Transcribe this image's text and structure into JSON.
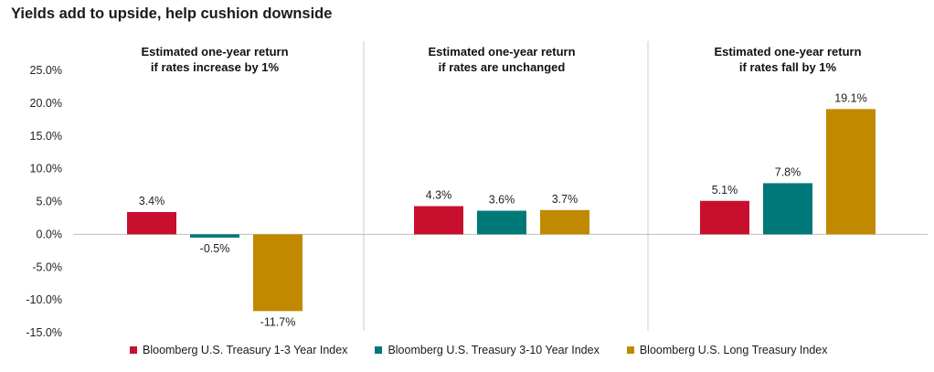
{
  "title": "Yields add to upside, help cushion downside",
  "colors": {
    "series1": "#c8102e",
    "series2": "#00787a",
    "series3": "#c08900",
    "divider": "#cccccc",
    "axis_line": "#bfbfbf"
  },
  "chart_data": {
    "type": "bar",
    "title": "Yields add to upside, help cushion downside",
    "ylim": [
      -15,
      25
    ],
    "yticks": [
      "25.0%",
      "20.0%",
      "15.0%",
      "10.0%",
      "5.0%",
      "0.0%",
      "-5.0%",
      "-10.0%",
      "-15.0%"
    ],
    "ytick_values": [
      25,
      20,
      15,
      10,
      5,
      0,
      -5,
      -10,
      -15
    ],
    "grid": false,
    "legend_position": "bottom",
    "categories": [
      "Estimated one-year return\nif rates increase by 1%",
      "Estimated one-year return\nif rates are unchanged",
      "Estimated one-year return\nif rates fall by 1%"
    ],
    "series": [
      {
        "name": "Bloomberg U.S. Treasury 1-3 Year Index",
        "values": [
          3.4,
          4.3,
          5.1
        ],
        "labels": [
          "3.4%",
          "4.3%",
          "5.1%"
        ]
      },
      {
        "name": "Bloomberg U.S. Treasury 3-10 Year Index",
        "values": [
          -0.5,
          3.6,
          7.8
        ],
        "labels": [
          "-0.5%",
          "3.6%",
          "7.8%"
        ]
      },
      {
        "name": "Bloomberg U.S. Long Treasury Index",
        "values": [
          -11.7,
          3.7,
          19.1
        ],
        "labels": [
          "-11.7%",
          "3.7%",
          "19.1%"
        ]
      }
    ]
  }
}
